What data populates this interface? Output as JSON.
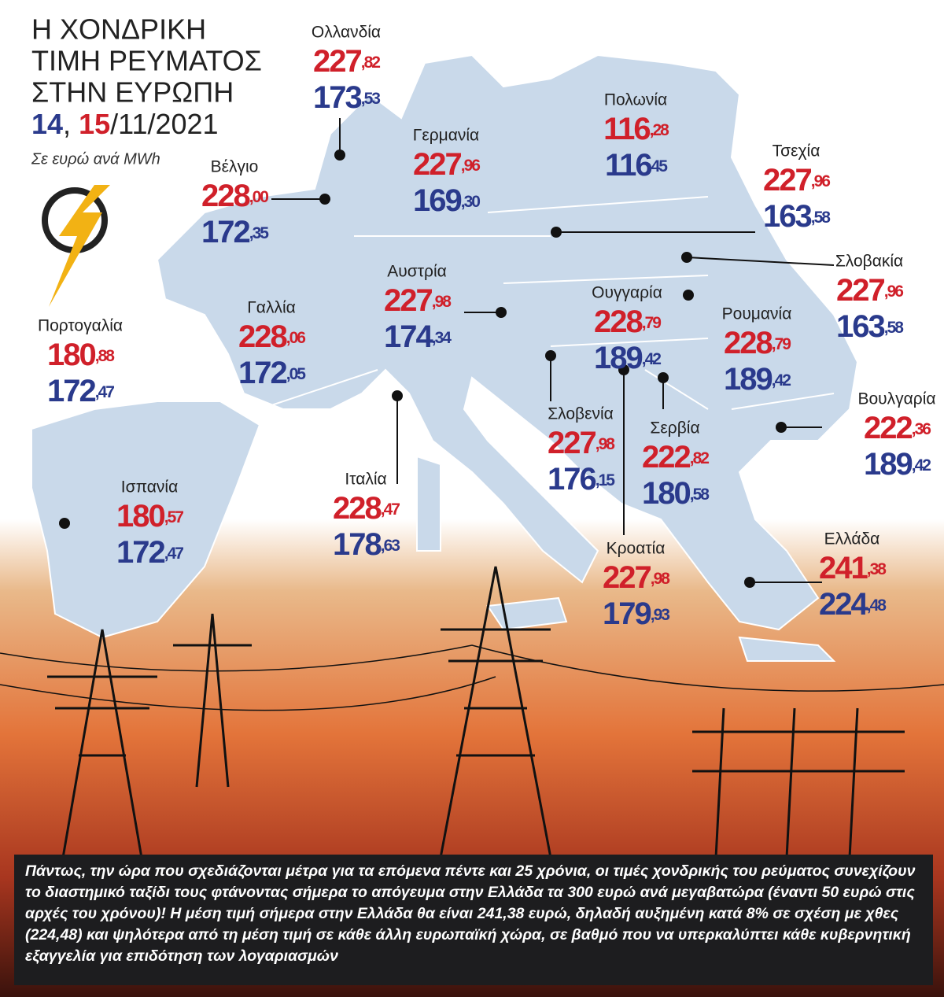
{
  "header": {
    "title_lines": [
      "Η ΧΟΝΔΡΙΚΗ",
      "ΤΙΜΗ ΡΕΥΜΑΤΟΣ",
      "ΣΤΗΝ ΕΥΡΩΠΗ"
    ],
    "date": {
      "day1": "14",
      "sep": ", ",
      "day2": "15",
      "rest": "/11/2021"
    },
    "unit": "Σε ευρώ ανά MWh"
  },
  "countries": [
    {
      "name": "Ολλανδία",
      "red": {
        "whole": "227",
        "fraction": ",82"
      },
      "blue": {
        "whole": "173",
        "fraction": ",53"
      }
    },
    {
      "name": "Βέλγιο",
      "red": {
        "whole": "228",
        "fraction": ",00"
      },
      "blue": {
        "whole": "172",
        "fraction": ",35"
      }
    },
    {
      "name": "Γερμανία",
      "red": {
        "whole": "227",
        "fraction": ",96"
      },
      "blue": {
        "whole": "169",
        "fraction": ",30"
      }
    },
    {
      "name": "Πολωνία",
      "red": {
        "whole": "116",
        "fraction": ",28"
      },
      "blue": {
        "whole": "116",
        "fraction": "45"
      }
    },
    {
      "name": "Τσεχία",
      "red": {
        "whole": "227",
        "fraction": ",96"
      },
      "blue": {
        "whole": "163",
        "fraction": ",58"
      }
    },
    {
      "name": "Σλοβακία",
      "red": {
        "whole": "227",
        "fraction": ",96"
      },
      "blue": {
        "whole": "163",
        "fraction": ",58"
      }
    },
    {
      "name": "Ουγγαρία",
      "red": {
        "whole": "228",
        "fraction": ",79"
      },
      "blue": {
        "whole": "189",
        "fraction": ",42"
      }
    },
    {
      "name": "Αυστρία",
      "red": {
        "whole": "227",
        "fraction": ",98"
      },
      "blue": {
        "whole": "174",
        "fraction": ",34"
      }
    },
    {
      "name": "Γαλλία",
      "red": {
        "whole": "228",
        "fraction": ",06"
      },
      "blue": {
        "whole": "172",
        "fraction": ",05"
      }
    },
    {
      "name": "Πορτογαλία",
      "red": {
        "whole": "180",
        "fraction": ",88"
      },
      "blue": {
        "whole": "172",
        "fraction": ",47"
      }
    },
    {
      "name": "Ισπανία",
      "red": {
        "whole": "180",
        "fraction": ",57"
      },
      "blue": {
        "whole": "172",
        "fraction": ",47"
      }
    },
    {
      "name": "Ιταλία",
      "red": {
        "whole": "228",
        "fraction": ",47"
      },
      "blue": {
        "whole": "178",
        "fraction": ",63"
      }
    },
    {
      "name": "Ρουμανία",
      "red": {
        "whole": "228",
        "fraction": ",79"
      },
      "blue": {
        "whole": "189",
        "fraction": ",42"
      }
    },
    {
      "name": "Σλοβενία",
      "red": {
        "whole": "227",
        "fraction": ",98"
      },
      "blue": {
        "whole": "176",
        "fraction": ",15"
      }
    },
    {
      "name": "Σερβία",
      "red": {
        "whole": "222",
        "fraction": ",82"
      },
      "blue": {
        "whole": "180",
        "fraction": ",58"
      }
    },
    {
      "name": "Βουλγαρία",
      "red": {
        "whole": "222",
        "fraction": ",36"
      },
      "blue": {
        "whole": "189",
        "fraction": ",42"
      }
    },
    {
      "name": "Κροατία",
      "red": {
        "whole": "227",
        "fraction": ",98"
      },
      "blue": {
        "whole": "179",
        "fraction": ",93"
      }
    },
    {
      "name": "Ελλάδα",
      "red": {
        "whole": "241",
        "fraction": ",38"
      },
      "blue": {
        "whole": "224",
        "fraction": ",48"
      }
    }
  ],
  "footer": "Πάντως, την ώρα που σχεδιάζονται μέτρα για τα επόμενα πέντε και 25 χρόνια, οι τιμές χονδρικής του ρεύματος συνεχίζουν  το διαστημικό ταξίδι τους φτάνοντας σήμερα το απόγευμα στην Ελλάδα τα 300 ευρώ ανά μεγαβατώρα (έναντι 50 ευρώ στις αρχές του χρόνου)! Η μέση τιμή σήμερα στην Ελλάδα θα είναι 241,38 ευρώ, δηλαδή αυξημένη κατά 8% σε σχέση με χθες (224,48) και ψηλότερα από τη μέση τιμή σε κάθε άλλη ευρωπαϊκή χώρα, σε βαθμό που να υπερκαλύπτει κάθε κυβερνητική εξαγγελία για επιδότηση των λογαριασμών"
}
